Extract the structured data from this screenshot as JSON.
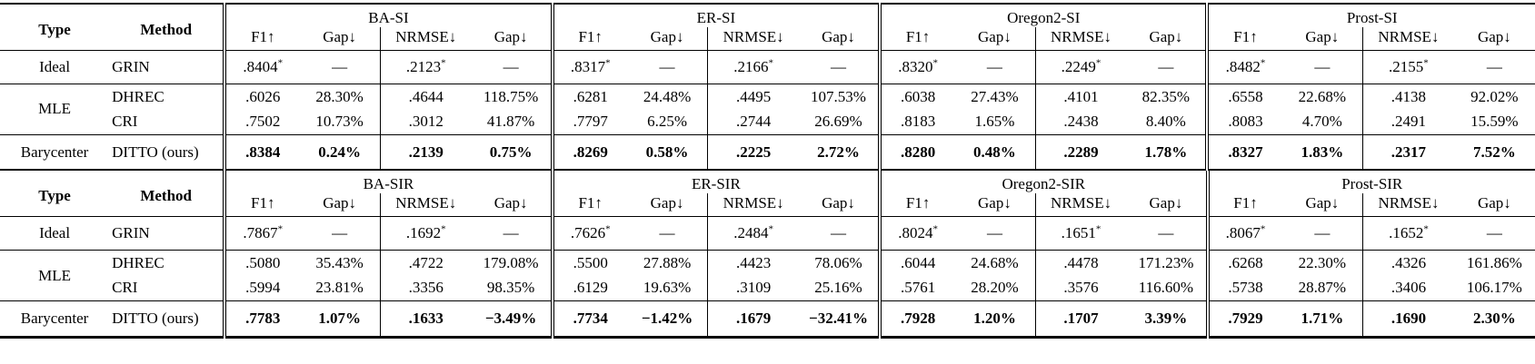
{
  "page": {
    "background": "#ffffff",
    "text_color": "#000000",
    "rule_color": "#000000"
  },
  "tables": [
    {
      "name": "SI-results",
      "type_label": "Type",
      "method_label": "Method",
      "groups": [
        "BA-SI",
        "ER-SI",
        "Oregon2-SI",
        "Prost-SI"
      ],
      "metric_labels": [
        "F1↑",
        "Gap↓",
        "NRMSE↓",
        "Gap↓"
      ],
      "rows": [
        {
          "type": "Ideal",
          "type_rowspan": 1,
          "method": "GRIN",
          "bold": false,
          "rule_above": true,
          "row_kind": "ideal",
          "cells": [
            {
              "v": ".8404",
              "sup": "*"
            },
            "—",
            {
              "v": ".2123",
              "sup": "*"
            },
            "—",
            {
              "v": ".8317",
              "sup": "*"
            },
            "—",
            {
              "v": ".2166",
              "sup": "*"
            },
            "—",
            {
              "v": ".8320",
              "sup": "*"
            },
            "—",
            {
              "v": ".2249",
              "sup": "*"
            },
            "—",
            {
              "v": ".8482",
              "sup": "*"
            },
            "—",
            {
              "v": ".2155",
              "sup": "*"
            },
            "—"
          ]
        },
        {
          "type": "MLE",
          "type_rowspan": 2,
          "method": "DHREC",
          "bold": false,
          "rule_above": true,
          "row_kind": "mle",
          "cells": [
            ".6026",
            "28.30%",
            ".4644",
            "118.75%",
            ".6281",
            "24.48%",
            ".4495",
            "107.53%",
            ".6038",
            "27.43%",
            ".4101",
            "82.35%",
            ".6558",
            "22.68%",
            ".4138",
            "92.02%"
          ]
        },
        {
          "type": null,
          "method": "CRI",
          "bold": false,
          "rule_above": false,
          "row_kind": "mle",
          "cells": [
            ".7502",
            "10.73%",
            ".3012",
            "41.87%",
            ".7797",
            "6.25%",
            ".2744",
            "26.69%",
            ".8183",
            "1.65%",
            ".2438",
            "8.40%",
            ".8083",
            "4.70%",
            ".2491",
            "15.59%"
          ]
        },
        {
          "type": "Barycenter",
          "type_rowspan": 1,
          "method": "DITTO (ours)",
          "bold": true,
          "rule_above": true,
          "row_kind": "bary",
          "cells": [
            ".8384",
            "0.24%",
            ".2139",
            "0.75%",
            ".8269",
            "0.58%",
            ".2225",
            "2.72%",
            ".8280",
            "0.48%",
            ".2289",
            "1.78%",
            ".8327",
            "1.83%",
            ".2317",
            "7.52%"
          ]
        }
      ]
    },
    {
      "name": "SIR-results",
      "type_label": "Type",
      "method_label": "Method",
      "groups": [
        "BA-SIR",
        "ER-SIR",
        "Oregon2-SIR",
        "Prost-SIR"
      ],
      "metric_labels": [
        "F1↑",
        "Gap↓",
        "NRMSE↓",
        "Gap↓"
      ],
      "rows": [
        {
          "type": "Ideal",
          "type_rowspan": 1,
          "method": "GRIN",
          "bold": false,
          "rule_above": true,
          "row_kind": "ideal",
          "cells": [
            {
              "v": ".7867",
              "sup": "*"
            },
            "—",
            {
              "v": ".1692",
              "sup": "*"
            },
            "—",
            {
              "v": ".7626",
              "sup": "*"
            },
            "—",
            {
              "v": ".2484",
              "sup": "*"
            },
            "—",
            {
              "v": ".8024",
              "sup": "*"
            },
            "—",
            {
              "v": ".1651",
              "sup": "*"
            },
            "—",
            {
              "v": ".8067",
              "sup": "*"
            },
            "—",
            {
              "v": ".1652",
              "sup": "*"
            },
            "—"
          ]
        },
        {
          "type": "MLE",
          "type_rowspan": 2,
          "method": "DHREC",
          "bold": false,
          "rule_above": true,
          "row_kind": "mle",
          "cells": [
            ".5080",
            "35.43%",
            ".4722",
            "179.08%",
            ".5500",
            "27.88%",
            ".4423",
            "78.06%",
            ".6044",
            "24.68%",
            ".4478",
            "171.23%",
            ".6268",
            "22.30%",
            ".4326",
            "161.86%"
          ]
        },
        {
          "type": null,
          "method": "CRI",
          "bold": false,
          "rule_above": false,
          "row_kind": "mle",
          "cells": [
            ".5994",
            "23.81%",
            ".3356",
            "98.35%",
            ".6129",
            "19.63%",
            ".3109",
            "25.16%",
            ".5761",
            "28.20%",
            ".3576",
            "116.60%",
            ".5738",
            "28.87%",
            ".3406",
            "106.17%"
          ]
        },
        {
          "type": "Barycenter",
          "type_rowspan": 1,
          "method": "DITTO (ours)",
          "bold": true,
          "rule_above": true,
          "row_kind": "bary",
          "cells": [
            ".7783",
            "1.07%",
            ".1633",
            "−3.49%",
            ".7734",
            "−1.42%",
            ".1679",
            "−32.41%",
            ".7928",
            "1.20%",
            ".1707",
            "3.39%",
            ".7929",
            "1.71%",
            ".1690",
            "2.30%"
          ]
        }
      ]
    }
  ]
}
